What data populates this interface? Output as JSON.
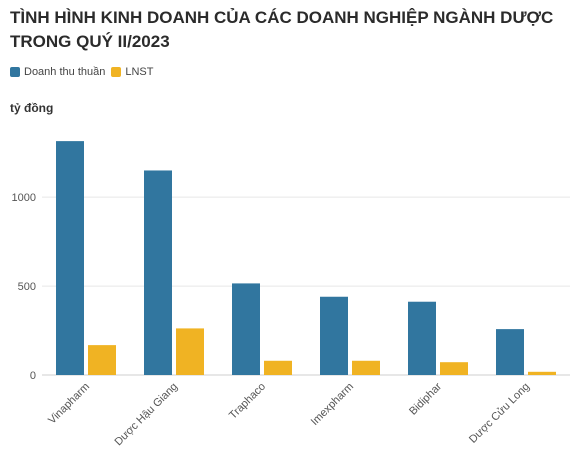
{
  "chart_data": {
    "type": "bar",
    "title": "TÌNH HÌNH KINH DOANH CỦA CÁC DOANH NGHIỆP NGÀNH DƯỢC TRONG QUÝ II/2023",
    "ylabel": "tỷ đồng",
    "xlabel": "",
    "categories": [
      "Vinapharm",
      "Dược Hậu Giang",
      "Traphaco",
      "Imexpharm",
      "Bidiphar",
      "Dược Cửu Long"
    ],
    "series": [
      {
        "name": "Doanh thu thuần",
        "color": "#31769f",
        "values": [
          1315,
          1150,
          515,
          440,
          412,
          258
        ]
      },
      {
        "name": "LNST",
        "color": "#f0b323",
        "values": [
          168,
          262,
          80,
          80,
          72,
          18
        ]
      }
    ],
    "ylim": [
      0,
      1400
    ],
    "yticks": [
      0,
      500,
      1000
    ],
    "grid": true,
    "legend": "top-left"
  }
}
